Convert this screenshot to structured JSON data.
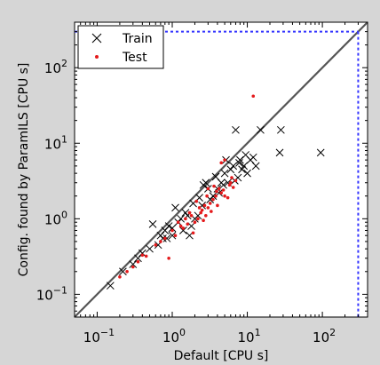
{
  "chart_data": {
    "type": "scatter",
    "xlabel": "Default [CPU s]",
    "ylabel": "Config. found by ParamILS [CPU s]",
    "xscale": "log",
    "yscale": "log",
    "xlim": [
      0.05,
      400
    ],
    "ylim": [
      0.05,
      400
    ],
    "x_ticks": [
      0.1,
      1,
      10,
      100
    ],
    "y_ticks": [
      0.1,
      1,
      10,
      100
    ],
    "x_tick_labels": [
      {
        "base": "10",
        "exp": "−1"
      },
      {
        "base": "10",
        "exp": "0"
      },
      {
        "base": "10",
        "exp": "1"
      },
      {
        "base": "10",
        "exp": "2"
      }
    ],
    "y_tick_labels": [
      {
        "base": "10",
        "exp": "−1"
      },
      {
        "base": "10",
        "exp": "0"
      },
      {
        "base": "10",
        "exp": "1"
      },
      {
        "base": "10",
        "exp": "2"
      }
    ],
    "grid": false,
    "legend_position": "top-left",
    "diagonal": true,
    "cutoff": 300,
    "colors": {
      "train": "#000000",
      "test": "#e41a1c",
      "diagonal": "#555555",
      "cutoff": "#3333ff"
    },
    "series": [
      {
        "name": "Train",
        "marker": "x",
        "points": [
          [
            0.15,
            0.13
          ],
          [
            0.22,
            0.2
          ],
          [
            0.3,
            0.25
          ],
          [
            0.35,
            0.3
          ],
          [
            0.4,
            0.35
          ],
          [
            0.5,
            0.4
          ],
          [
            0.55,
            0.85
          ],
          [
            0.7,
            0.6
          ],
          [
            0.8,
            0.7
          ],
          [
            0.85,
            0.55
          ],
          [
            0.9,
            0.8
          ],
          [
            1.0,
            0.75
          ],
          [
            1.1,
            1.4
          ],
          [
            1.2,
            0.9
          ],
          [
            1.3,
            1.0
          ],
          [
            1.5,
            1.2
          ],
          [
            1.6,
            1.1
          ],
          [
            1.8,
            0.8
          ],
          [
            2.0,
            1.0
          ],
          [
            2.2,
            1.1
          ],
          [
            2.5,
            1.5
          ],
          [
            2.8,
            3.0
          ],
          [
            3.0,
            2.5
          ],
          [
            3.5,
            2.0
          ],
          [
            4.0,
            2.5
          ],
          [
            4.5,
            3.0
          ],
          [
            5.0,
            4.0
          ],
          [
            5.5,
            3.0
          ],
          [
            6.0,
            4.5
          ],
          [
            6.5,
            5.0
          ],
          [
            7.0,
            15.0
          ],
          [
            7.5,
            3.5
          ],
          [
            8.0,
            6.0
          ],
          [
            9.0,
            5.0
          ],
          [
            10.0,
            4.0
          ],
          [
            11.0,
            6.0
          ],
          [
            13.0,
            5.0
          ],
          [
            15.0,
            15.0
          ],
          [
            28.0,
            15.0
          ],
          [
            27.0,
            7.5
          ],
          [
            95.0,
            7.5
          ],
          [
            1.7,
            0.6
          ],
          [
            2.3,
            1.9
          ],
          [
            1.4,
            0.7
          ],
          [
            1.0,
            0.6
          ],
          [
            0.75,
            0.55
          ],
          [
            0.65,
            0.45
          ],
          [
            3.2,
            1.8
          ],
          [
            4.2,
            2.2
          ],
          [
            6.8,
            3.2
          ],
          [
            8.5,
            4.5
          ],
          [
            12.0,
            6.5
          ],
          [
            5.2,
            6.0
          ],
          [
            2.6,
            2.8
          ],
          [
            3.8,
            3.6
          ],
          [
            1.9,
            1.6
          ],
          [
            7.8,
            5.5
          ],
          [
            9.5,
            7.0
          ],
          [
            4.8,
            2.8
          ]
        ]
      },
      {
        "name": "Test",
        "marker": "dot",
        "points": [
          [
            0.2,
            0.17
          ],
          [
            0.25,
            0.2
          ],
          [
            0.3,
            0.23
          ],
          [
            0.35,
            0.27
          ],
          [
            0.4,
            0.33
          ],
          [
            0.45,
            0.32
          ],
          [
            0.6,
            0.45
          ],
          [
            0.7,
            0.5
          ],
          [
            0.8,
            0.55
          ],
          [
            0.9,
            0.3
          ],
          [
            1.0,
            0.7
          ],
          [
            1.1,
            0.6
          ],
          [
            1.2,
            0.9
          ],
          [
            1.3,
            0.8
          ],
          [
            1.4,
            0.75
          ],
          [
            1.5,
            1.0
          ],
          [
            1.6,
            0.85
          ],
          [
            1.7,
            1.2
          ],
          [
            1.8,
            1.1
          ],
          [
            2.0,
            0.9
          ],
          [
            2.2,
            1.0
          ],
          [
            2.4,
            1.2
          ],
          [
            2.5,
            1.3
          ],
          [
            2.7,
            1.5
          ],
          [
            3.0,
            1.4
          ],
          [
            3.2,
            1.6
          ],
          [
            3.5,
            1.8
          ],
          [
            3.8,
            2.0
          ],
          [
            4.0,
            1.5
          ],
          [
            4.2,
            2.5
          ],
          [
            4.5,
            2.2
          ],
          [
            5.0,
            2.0
          ],
          [
            5.5,
            1.9
          ],
          [
            6.0,
            3.0
          ],
          [
            6.5,
            2.6
          ],
          [
            7.0,
            3.2
          ],
          [
            3.0,
            2.5
          ],
          [
            2.9,
            2.0
          ],
          [
            12.0,
            42.0
          ],
          [
            4.5,
            5.5
          ],
          [
            5.0,
            6.0
          ],
          [
            3.6,
            2.7
          ],
          [
            2.8,
            1.1
          ],
          [
            2.1,
            1.7
          ],
          [
            2.6,
            0.95
          ],
          [
            3.3,
            1.25
          ],
          [
            1.9,
            0.65
          ],
          [
            5.8,
            2.8
          ],
          [
            6.2,
            3.5
          ],
          [
            4.8,
            2.4
          ],
          [
            3.9,
            2.3
          ],
          [
            2.3,
            1.4
          ]
        ]
      }
    ]
  }
}
